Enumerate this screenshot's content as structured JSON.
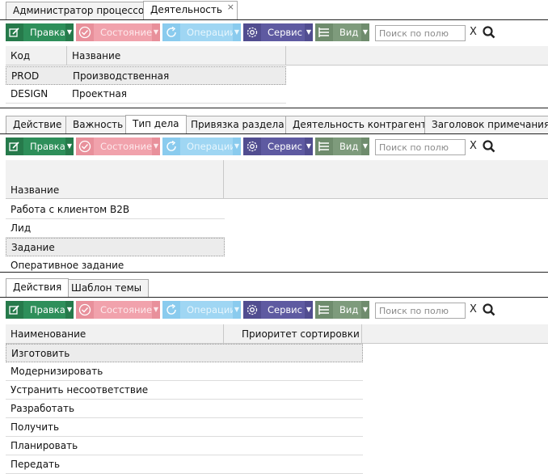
{
  "top_tabs": [
    {
      "label": "Администратор процессов"
    },
    {
      "label": "Деятельность",
      "close": "×"
    }
  ],
  "toolbar": {
    "pravka": "Правка",
    "sostoyanie": "Состояние",
    "operacii": "Операции",
    "servis": "Сервис",
    "vid": "Вид",
    "search_placeholder": "Поиск по полю",
    "clear": "X",
    "colors": {
      "pravka": "#2e8f5a",
      "sostoyanie": "#f1a2ac",
      "operacii": "#9fd6f3",
      "servis": "#5e5aa1",
      "vid": "#7e9b7c"
    }
  },
  "grid1": {
    "headers": [
      "Код",
      "Название"
    ],
    "rows": [
      {
        "code": "PROD",
        "name": "Производственная"
      },
      {
        "code": "DESIGN",
        "name": "Проектная"
      }
    ]
  },
  "mid_tabs": [
    {
      "label": "Действие"
    },
    {
      "label": "Важность"
    },
    {
      "label": "Тип дела"
    },
    {
      "label": "Привязка раздела"
    },
    {
      "label": "Деятельность контрагента"
    },
    {
      "label": "Заголовок примечания"
    }
  ],
  "grid2": {
    "header": "Название",
    "rows": [
      "Работа с клиентом B2B",
      "Лид",
      "Задание",
      "Оперативное задание"
    ]
  },
  "bottom_tabs": [
    {
      "label": "Действия"
    },
    {
      "label": "Шаблон темы"
    }
  ],
  "grid3": {
    "headers": [
      "Наименование",
      "Приоритет сортировки"
    ],
    "rows": [
      "Изготовить",
      "Модернизировать",
      "Устранить несоответствие",
      "Разработать",
      "Получить",
      "Планировать",
      "Передать"
    ]
  }
}
